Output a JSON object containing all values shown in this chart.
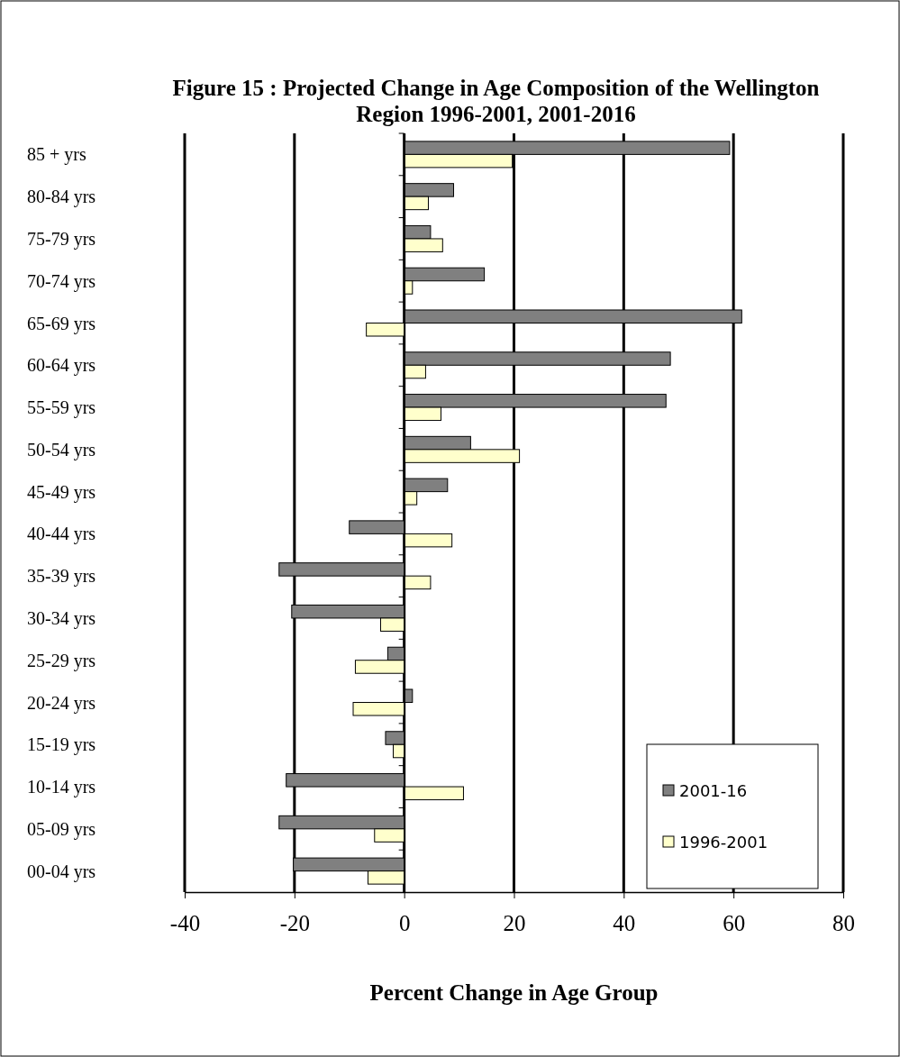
{
  "chart_data": {
    "type": "bar",
    "orientation": "horizontal",
    "title": "Figure 15 : Projected Change in Age Composition of the Wellington Region 1996-2001, 2001-2016",
    "xlabel": "Percent Change in Age Group",
    "categories": [
      "85 + yrs",
      "80-84 yrs",
      "75-79 yrs",
      "70-74 yrs",
      "65-69 yrs",
      "60-64 yrs",
      "55-59 yrs",
      "50-54 yrs",
      "45-49 yrs",
      "40-44 yrs",
      "35-39 yrs",
      "30-34 yrs",
      "25-29 yrs",
      "20-24 yrs",
      "15-19 yrs",
      "10-14 yrs",
      "05-09 yrs",
      "00-04 yrs"
    ],
    "series": [
      {
        "name": "2001-16",
        "color": "#808080",
        "values": [
          59.3,
          9,
          4.8,
          14.6,
          61.5,
          48.5,
          47.7,
          12.1,
          7.9,
          -10,
          -22.8,
          -20.5,
          -3,
          1.5,
          -3.4,
          -21.5,
          -22.8,
          -20.2
        ]
      },
      {
        "name": "1996-2001",
        "color": "#ffffcc",
        "values": [
          19.7,
          4.4,
          7,
          1.5,
          -6.9,
          3.9,
          6.7,
          21,
          2.3,
          8.7,
          4.8,
          -4.3,
          -8.9,
          -9.3,
          -2,
          10.8,
          -5.4,
          -6.6
        ]
      }
    ],
    "xlim": [
      -40,
      80
    ],
    "xticks": [
      -40,
      -20,
      0,
      20,
      40,
      60,
      80
    ],
    "grid": "x",
    "legend": "bottom right"
  }
}
